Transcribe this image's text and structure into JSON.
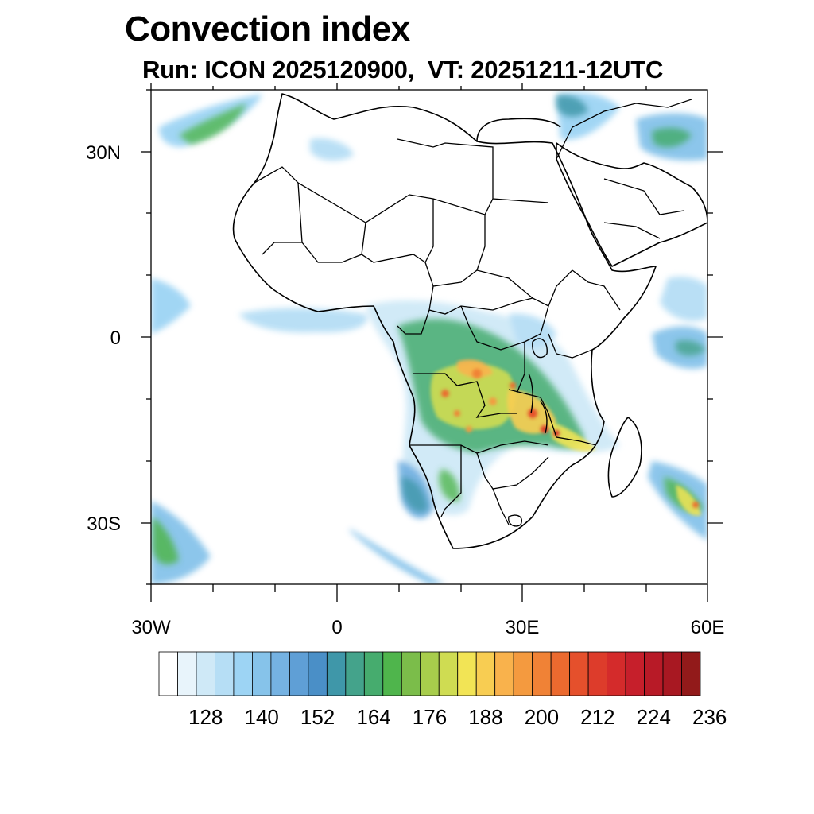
{
  "title": "Convection index",
  "subtitle": "Run: ICON 2025120900,  VT: 20251211-12UTC",
  "map": {
    "extent": {
      "lon": [
        -30,
        60
      ],
      "lat": [
        -40,
        40
      ]
    },
    "y_axis_labels": [
      "30N",
      "0",
      "30S"
    ],
    "x_axis_labels": [
      "30W",
      "0",
      "30E",
      "60E"
    ]
  },
  "colorbar": {
    "labels": [
      "128",
      "140",
      "152",
      "164",
      "176",
      "188",
      "200",
      "212",
      "224",
      "236"
    ],
    "colors": [
      "#ffffff",
      "#e8f4fb",
      "#cfe9f7",
      "#b6def5",
      "#9dd4f4",
      "#86c3ea",
      "#75b2e2",
      "#5f9fd6",
      "#4a8fc7",
      "#3f97a9",
      "#44a38b",
      "#46ac6e",
      "#4fb54c",
      "#7bbd4a",
      "#a8cd4c",
      "#cfdc52",
      "#f2e455",
      "#f8cd52",
      "#f9b24c",
      "#f49a3f",
      "#f08236",
      "#eb6a2f",
      "#e5502c",
      "#dd3c2b",
      "#d42b2b",
      "#c61f2b",
      "#b81a27",
      "#a81822",
      "#921a1a"
    ]
  }
}
